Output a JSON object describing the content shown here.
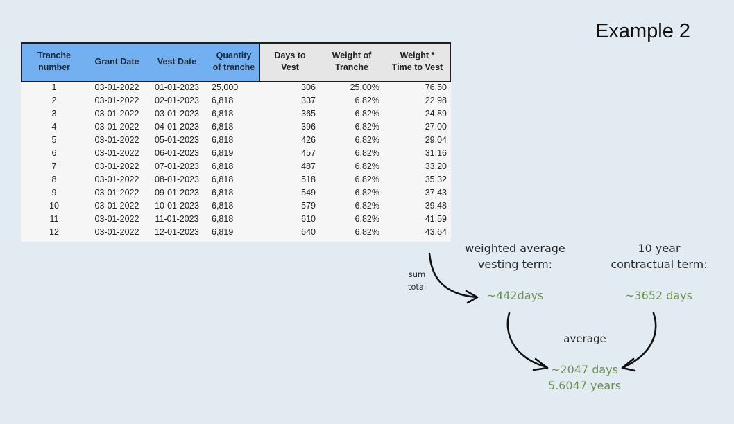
{
  "title": "Example 2",
  "table": {
    "headers": [
      "Tranche number",
      "Grant Date",
      "Vest Date",
      "Quantity of tranche",
      "Days to Vest",
      "Weight of Tranche",
      "Weight * Time to Vest"
    ],
    "header_lines": [
      [
        "Tranche",
        "number"
      ],
      [
        "Grant Date"
      ],
      [
        "Vest Date"
      ],
      [
        "Quantity",
        "of tranche"
      ],
      [
        "Days to",
        "Vest"
      ],
      [
        "Weight of",
        "Tranche"
      ],
      [
        "Weight *",
        "Time to Vest"
      ]
    ],
    "rows": [
      [
        "1",
        "03-01-2022",
        "01-01-2023",
        "25,000",
        "306",
        "25.00%",
        "76.50"
      ],
      [
        "2",
        "03-01-2022",
        "02-01-2023",
        "6,818",
        "337",
        "6.82%",
        "22.98"
      ],
      [
        "3",
        "03-01-2022",
        "03-01-2023",
        "6,818",
        "365",
        "6.82%",
        "24.89"
      ],
      [
        "4",
        "03-01-2022",
        "04-01-2023",
        "6,818",
        "396",
        "6.82%",
        "27.00"
      ],
      [
        "5",
        "03-01-2022",
        "05-01-2023",
        "6,818",
        "426",
        "6.82%",
        "29.04"
      ],
      [
        "6",
        "03-01-2022",
        "06-01-2023",
        "6,819",
        "457",
        "6.82%",
        "31.16"
      ],
      [
        "7",
        "03-01-2022",
        "07-01-2023",
        "6,818",
        "487",
        "6.82%",
        "33.20"
      ],
      [
        "8",
        "03-01-2022",
        "08-01-2023",
        "6,818",
        "518",
        "6.82%",
        "35.32"
      ],
      [
        "9",
        "03-01-2022",
        "09-01-2023",
        "6,818",
        "549",
        "6.82%",
        "37.43"
      ],
      [
        "10",
        "03-01-2022",
        "10-01-2023",
        "6,818",
        "579",
        "6.82%",
        "39.48"
      ],
      [
        "11",
        "03-01-2022",
        "11-01-2023",
        "6,818",
        "610",
        "6.82%",
        "41.59"
      ],
      [
        "12",
        "03-01-2022",
        "12-01-2023",
        "6,819",
        "640",
        "6.82%",
        "43.64"
      ]
    ]
  },
  "annotations": {
    "sum_label_1": "sum",
    "sum_label_2": "total",
    "wavg_label_1": "weighted average",
    "wavg_label_2": "vesting term:",
    "wavg_value": "~442days",
    "contract_label_1": "10 year",
    "contract_label_2": "contractual term:",
    "contract_value": "~3652 days",
    "average_label": "average",
    "result_days": "~2047 days",
    "result_years": "5.6047 years"
  },
  "colors": {
    "header_blue": "#73b0f2",
    "header_gray": "#e6e6e6",
    "annotation_green": "#6e9054",
    "background": "#e3ebf2"
  }
}
